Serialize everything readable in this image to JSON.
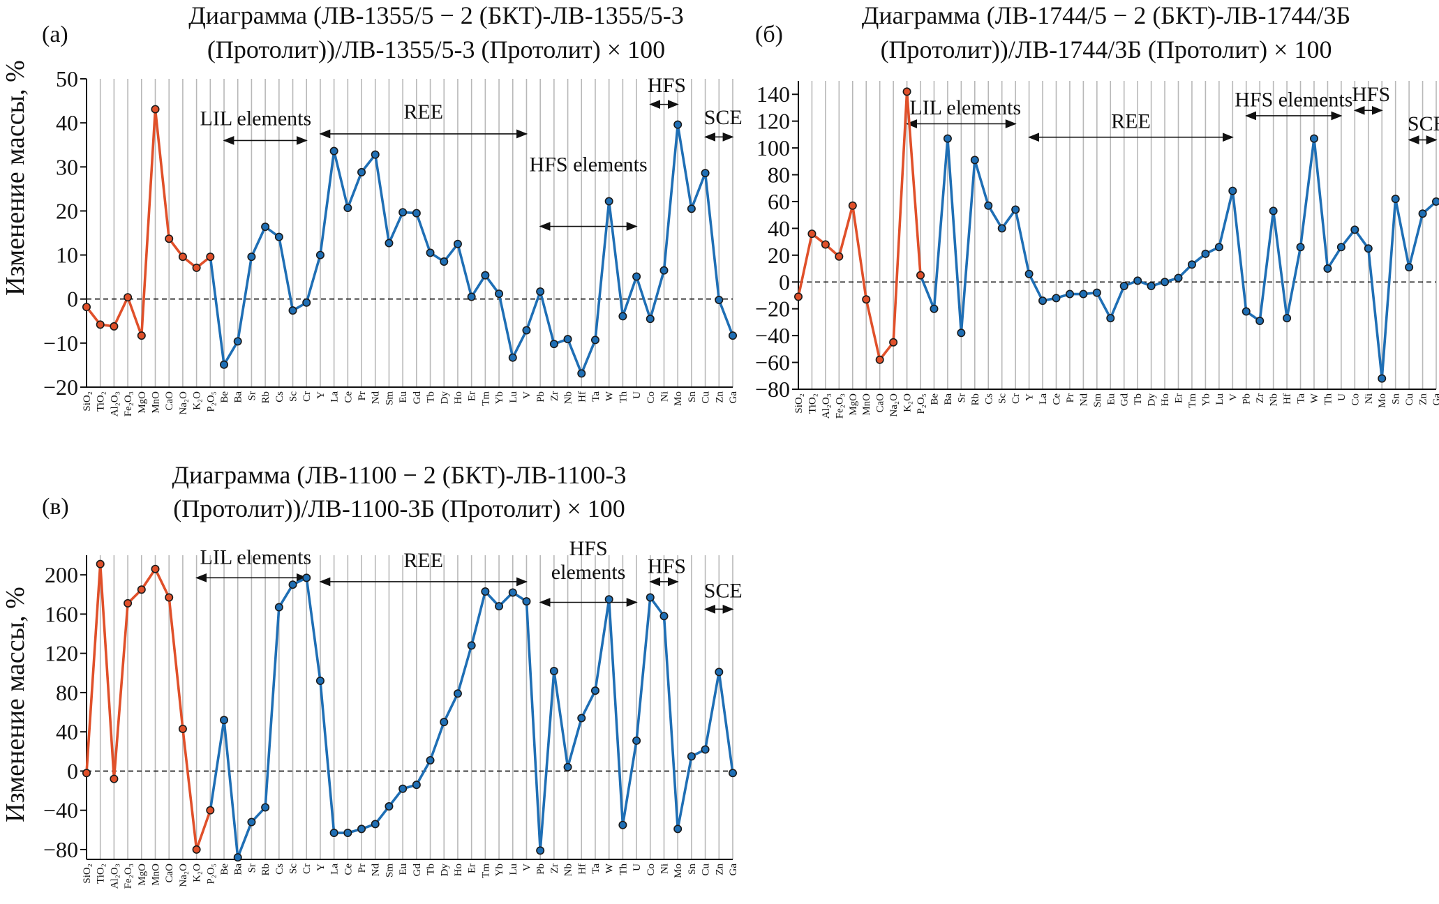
{
  "colors": {
    "oxide": "#e0502a",
    "element": "#1f6fb5",
    "grid": "#b8b8b8",
    "marker_edge": "#1a1a1a"
  },
  "ylabel": "Изменение массы, %",
  "categories": [
    "SiO₂",
    "TiO₂",
    "Al₂O₃",
    "Fe₂O₃",
    "MgO",
    "MnO",
    "CaO",
    "Na₂O",
    "K₂O",
    "P₂O₅",
    "Be",
    "Ba",
    "Sr",
    "Rb",
    "Cs",
    "Sc",
    "Cr",
    "Y",
    "La",
    "Ce",
    "Pr",
    "Nd",
    "Sm",
    "Eu",
    "Gd",
    "Tb",
    "Dy",
    "Ho",
    "Er",
    "Tm",
    "Yb",
    "Lu",
    "V",
    "Pb",
    "Zr",
    "Nb",
    "Hf",
    "Ta",
    "W",
    "Th",
    "U",
    "Co",
    "Ni",
    "Mo",
    "Sn",
    "Cu",
    "Zn",
    "Ga"
  ],
  "chart_data": [
    {
      "type": "line",
      "panel": "(а)",
      "title_lines": [
        "Диаграмма (ЛВ-1355/5 − 2 (БКТ)-ЛВ-1355/5-3",
        "(Протолит))/ЛВ-1355/5-3 (Протолит) × 100"
      ],
      "ylim": [
        -20,
        50
      ],
      "yticks": [
        -20,
        -10,
        0,
        10,
        20,
        30,
        40,
        50
      ],
      "ytick_labels": [
        "−20",
        "−10",
        "0",
        "10",
        "20",
        "30",
        "40",
        "50"
      ],
      "orange_count": 10,
      "values": [
        -1.8,
        -5.8,
        -6.2,
        0.4,
        -8.3,
        43.1,
        13.7,
        9.6,
        7.1,
        9.6,
        -14.9,
        -9.6,
        9.6,
        16.4,
        14.1,
        -2.6,
        -0.8,
        10.0,
        33.6,
        20.7,
        28.8,
        32.8,
        12.7,
        19.7,
        19.5,
        10.5,
        8.5,
        12.5,
        0.5,
        5.4,
        1.2,
        -13.3,
        -7.1,
        1.7,
        -10.2,
        -9.1,
        -16.9,
        -9.3,
        22.2,
        -3.9,
        5.1,
        -4.5,
        6.5,
        39.6,
        20.5,
        28.6,
        -0.2,
        -8.3
      ],
      "groups": [
        {
          "label": "LIL elements",
          "from": 10,
          "to": 16,
          "y": 36,
          "label_y": 39.5,
          "label_x": 12.3
        },
        {
          "label": "REE",
          "from": 17,
          "to": 32,
          "y": 37.5,
          "label_y": 41,
          "label_x": 24.5
        },
        {
          "label": "HFS elements",
          "from": 33,
          "to": 40,
          "y": 16.5,
          "label_y": 29,
          "label_x": 36.5
        },
        {
          "label": "HFS",
          "from": 41,
          "to": 43,
          "y": 44.2,
          "label_y": 47,
          "label_x": 42.2
        },
        {
          "label": "SCE",
          "from": 45,
          "to": 47,
          "y": 36.8,
          "label_y": 39.7,
          "label_x": 46.3
        }
      ]
    },
    {
      "type": "line",
      "panel": "(б)",
      "title_lines": [
        "Диаграмма (ЛВ-1744/5 − 2 (БКТ)-ЛВ-1744/3Б",
        "(Протолит))/ЛВ-1744/3Б (Протолит) × 100"
      ],
      "ylim": [
        -80,
        150
      ],
      "yticks": [
        -80,
        -60,
        -40,
        -20,
        0,
        20,
        40,
        60,
        80,
        100,
        120,
        140
      ],
      "ytick_labels": [
        "−80",
        "−60",
        "−40",
        "−20",
        "0",
        "20",
        "40",
        "60",
        "80",
        "100",
        "120",
        "140"
      ],
      "orange_count": 10,
      "values": [
        -11,
        36,
        28,
        19,
        57,
        -13,
        -58,
        -45,
        142,
        5,
        -20,
        107,
        -38,
        91,
        57,
        40,
        54,
        6,
        -14,
        -12,
        -9,
        -9,
        -8,
        -27,
        -3,
        1,
        -3,
        0,
        3,
        13,
        21,
        26,
        68,
        -22,
        -29,
        53,
        -27,
        26,
        107,
        10,
        26,
        39,
        25,
        -72,
        62,
        11,
        51,
        60
      ],
      "groups": [
        {
          "label": "LIL elements",
          "from": 8,
          "to": 16,
          "y": 118,
          "label_y": 125,
          "label_x": 12.3
        },
        {
          "label": "REE",
          "from": 17,
          "to": 32,
          "y": 108,
          "label_y": 115,
          "label_x": 24.5
        },
        {
          "label": "HFS elements",
          "from": 33,
          "to": 40,
          "y": 124,
          "label_y": 131,
          "label_x": 36.5
        },
        {
          "label": "HFS",
          "from": 41,
          "to": 43,
          "y": 128,
          "label_y": 135,
          "label_x": 42.2
        },
        {
          "label": "SCE",
          "from": 45,
          "to": 47,
          "y": 106,
          "label_y": 113,
          "label_x": 46.3
        }
      ]
    },
    {
      "type": "line",
      "panel": "(в)",
      "title_lines": [
        "Диаграмма (ЛВ-1100 − 2 (БКТ)-ЛВ-1100-3",
        "(Протолит))/ЛВ-1100-3Б (Протолит) × 100"
      ],
      "ylim": [
        -90,
        220
      ],
      "yticks": [
        -80,
        -40,
        0,
        40,
        80,
        120,
        160,
        200
      ],
      "ytick_labels": [
        "−80",
        "−40",
        "0",
        "40",
        "80",
        "120",
        "160",
        "200"
      ],
      "orange_count": 10,
      "values": [
        -2,
        211,
        -8,
        171,
        185,
        206,
        177,
        43,
        -80,
        -40,
        52,
        -88,
        -52,
        -37,
        167,
        190,
        197,
        92,
        -63,
        -63,
        -59,
        -54,
        -36,
        -18,
        -14,
        11,
        50,
        79,
        128,
        183,
        168,
        182,
        173,
        -81,
        102,
        4,
        54,
        82,
        175,
        -55,
        31,
        177,
        158,
        -59,
        15,
        22,
        101,
        -2
      ],
      "groups": [
        {
          "label": "LIL elements",
          "from": 8,
          "to": 16,
          "y": 197,
          "label_y": 211,
          "label_x": 12.3
        },
        {
          "label": "REE",
          "from": 17,
          "to": 32,
          "y": 193,
          "label_y": 208,
          "label_x": 24.5
        },
        {
          "label": "HFS",
          "from": 33,
          "to": 40,
          "y": 172,
          "label_y": 220,
          "label_x": 36.5
        },
        {
          "label": "elements",
          "from": 33,
          "to": 40,
          "y": 172,
          "label_y": 196,
          "label_x": 36.5,
          "no_arrow": true
        },
        {
          "label": "HFS",
          "from": 41,
          "to": 43,
          "y": 193,
          "label_y": 202,
          "label_x": 42.2
        },
        {
          "label": "SCE",
          "from": 45,
          "to": 47,
          "y": 165,
          "label_y": 177,
          "label_x": 46.3
        }
      ]
    }
  ]
}
